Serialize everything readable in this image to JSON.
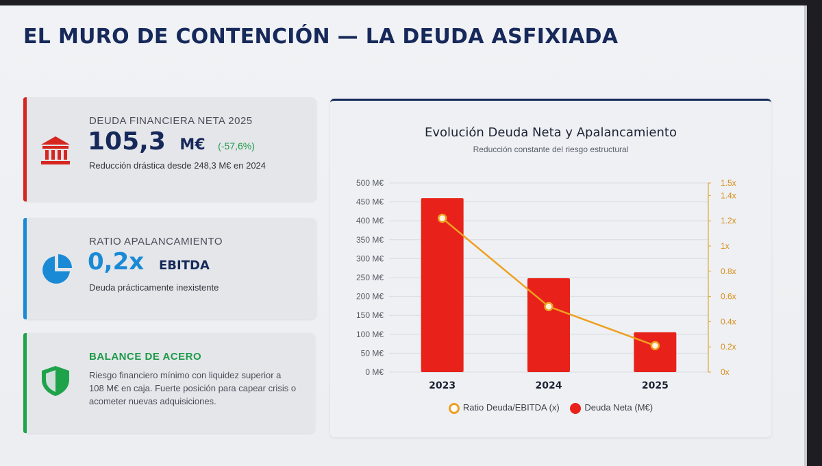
{
  "slide": {
    "title": "EL MURO DE CONTENCIÓN — LA DEUDA ASFIXIADA"
  },
  "cards": {
    "deuda": {
      "label": "DEUDA FINANCIERA NETA 2025",
      "value": "105,3",
      "unit": "M€",
      "change": "(-57,6%)",
      "sub": "Reducción drástica desde 248,3 M€ en 2024",
      "icon": "bank-icon",
      "accent": "#d62620"
    },
    "ratio": {
      "label": "RATIO APALANCAMIENTO",
      "value": "0,2x",
      "unit": "EBITDA",
      "sub": "Deuda prácticamente inexistente",
      "icon": "pie-chart-icon",
      "accent": "#1a8ad6"
    },
    "balance": {
      "label": "BALANCE DE ACERO",
      "sub_lines": [
        "Riesgo financiero mínimo con liquidez superior a",
        "108 M€ en caja. Fuerte posición para capear crisis o",
        "acometer nuevas adquisiciones."
      ],
      "icon": "shield-icon",
      "accent": "#1ea34a"
    }
  },
  "chart_data": {
    "type": "bar",
    "title": "Evolución Deuda Neta y Apalancamiento",
    "subtitle": "Reducción constante del riesgo estructural",
    "categories": [
      "2023",
      "2024",
      "2025"
    ],
    "series": [
      {
        "name": "Deuda Neta (M€)",
        "type": "bar",
        "axis": "left",
        "color": "#e8221a",
        "values": [
          460,
          248.3,
          105.3
        ]
      },
      {
        "name": "Ratio Deuda/EBITDA (x)",
        "type": "line",
        "axis": "right",
        "color": "#eea020",
        "values": [
          1.22,
          0.52,
          0.21
        ]
      }
    ],
    "y_left": {
      "ylim": [
        0,
        500
      ],
      "ticks": [
        0,
        50,
        100,
        150,
        200,
        250,
        300,
        350,
        400,
        450,
        500
      ],
      "tick_labels": [
        "0 M€",
        "50 M€",
        "100 M€",
        "150 M€",
        "200 M€",
        "250 M€",
        "300 M€",
        "350 M€",
        "400 M€",
        "450 M€",
        "500 M€"
      ]
    },
    "y_right": {
      "ylim": [
        0,
        1.5
      ],
      "ticks": [
        0,
        0.2,
        0.4,
        0.6,
        0.8,
        1,
        1.2,
        1.4,
        1.5
      ],
      "tick_labels": [
        "0x",
        "0.2x",
        "0.4x",
        "0.6x",
        "0.8x",
        "1x",
        "1.2x",
        "1.4x",
        "1.5x"
      ]
    },
    "grid": true,
    "legend_position": "bottom",
    "legend": [
      "Ratio Deuda/EBITDA (x)",
      "Deuda Neta (M€)"
    ]
  }
}
